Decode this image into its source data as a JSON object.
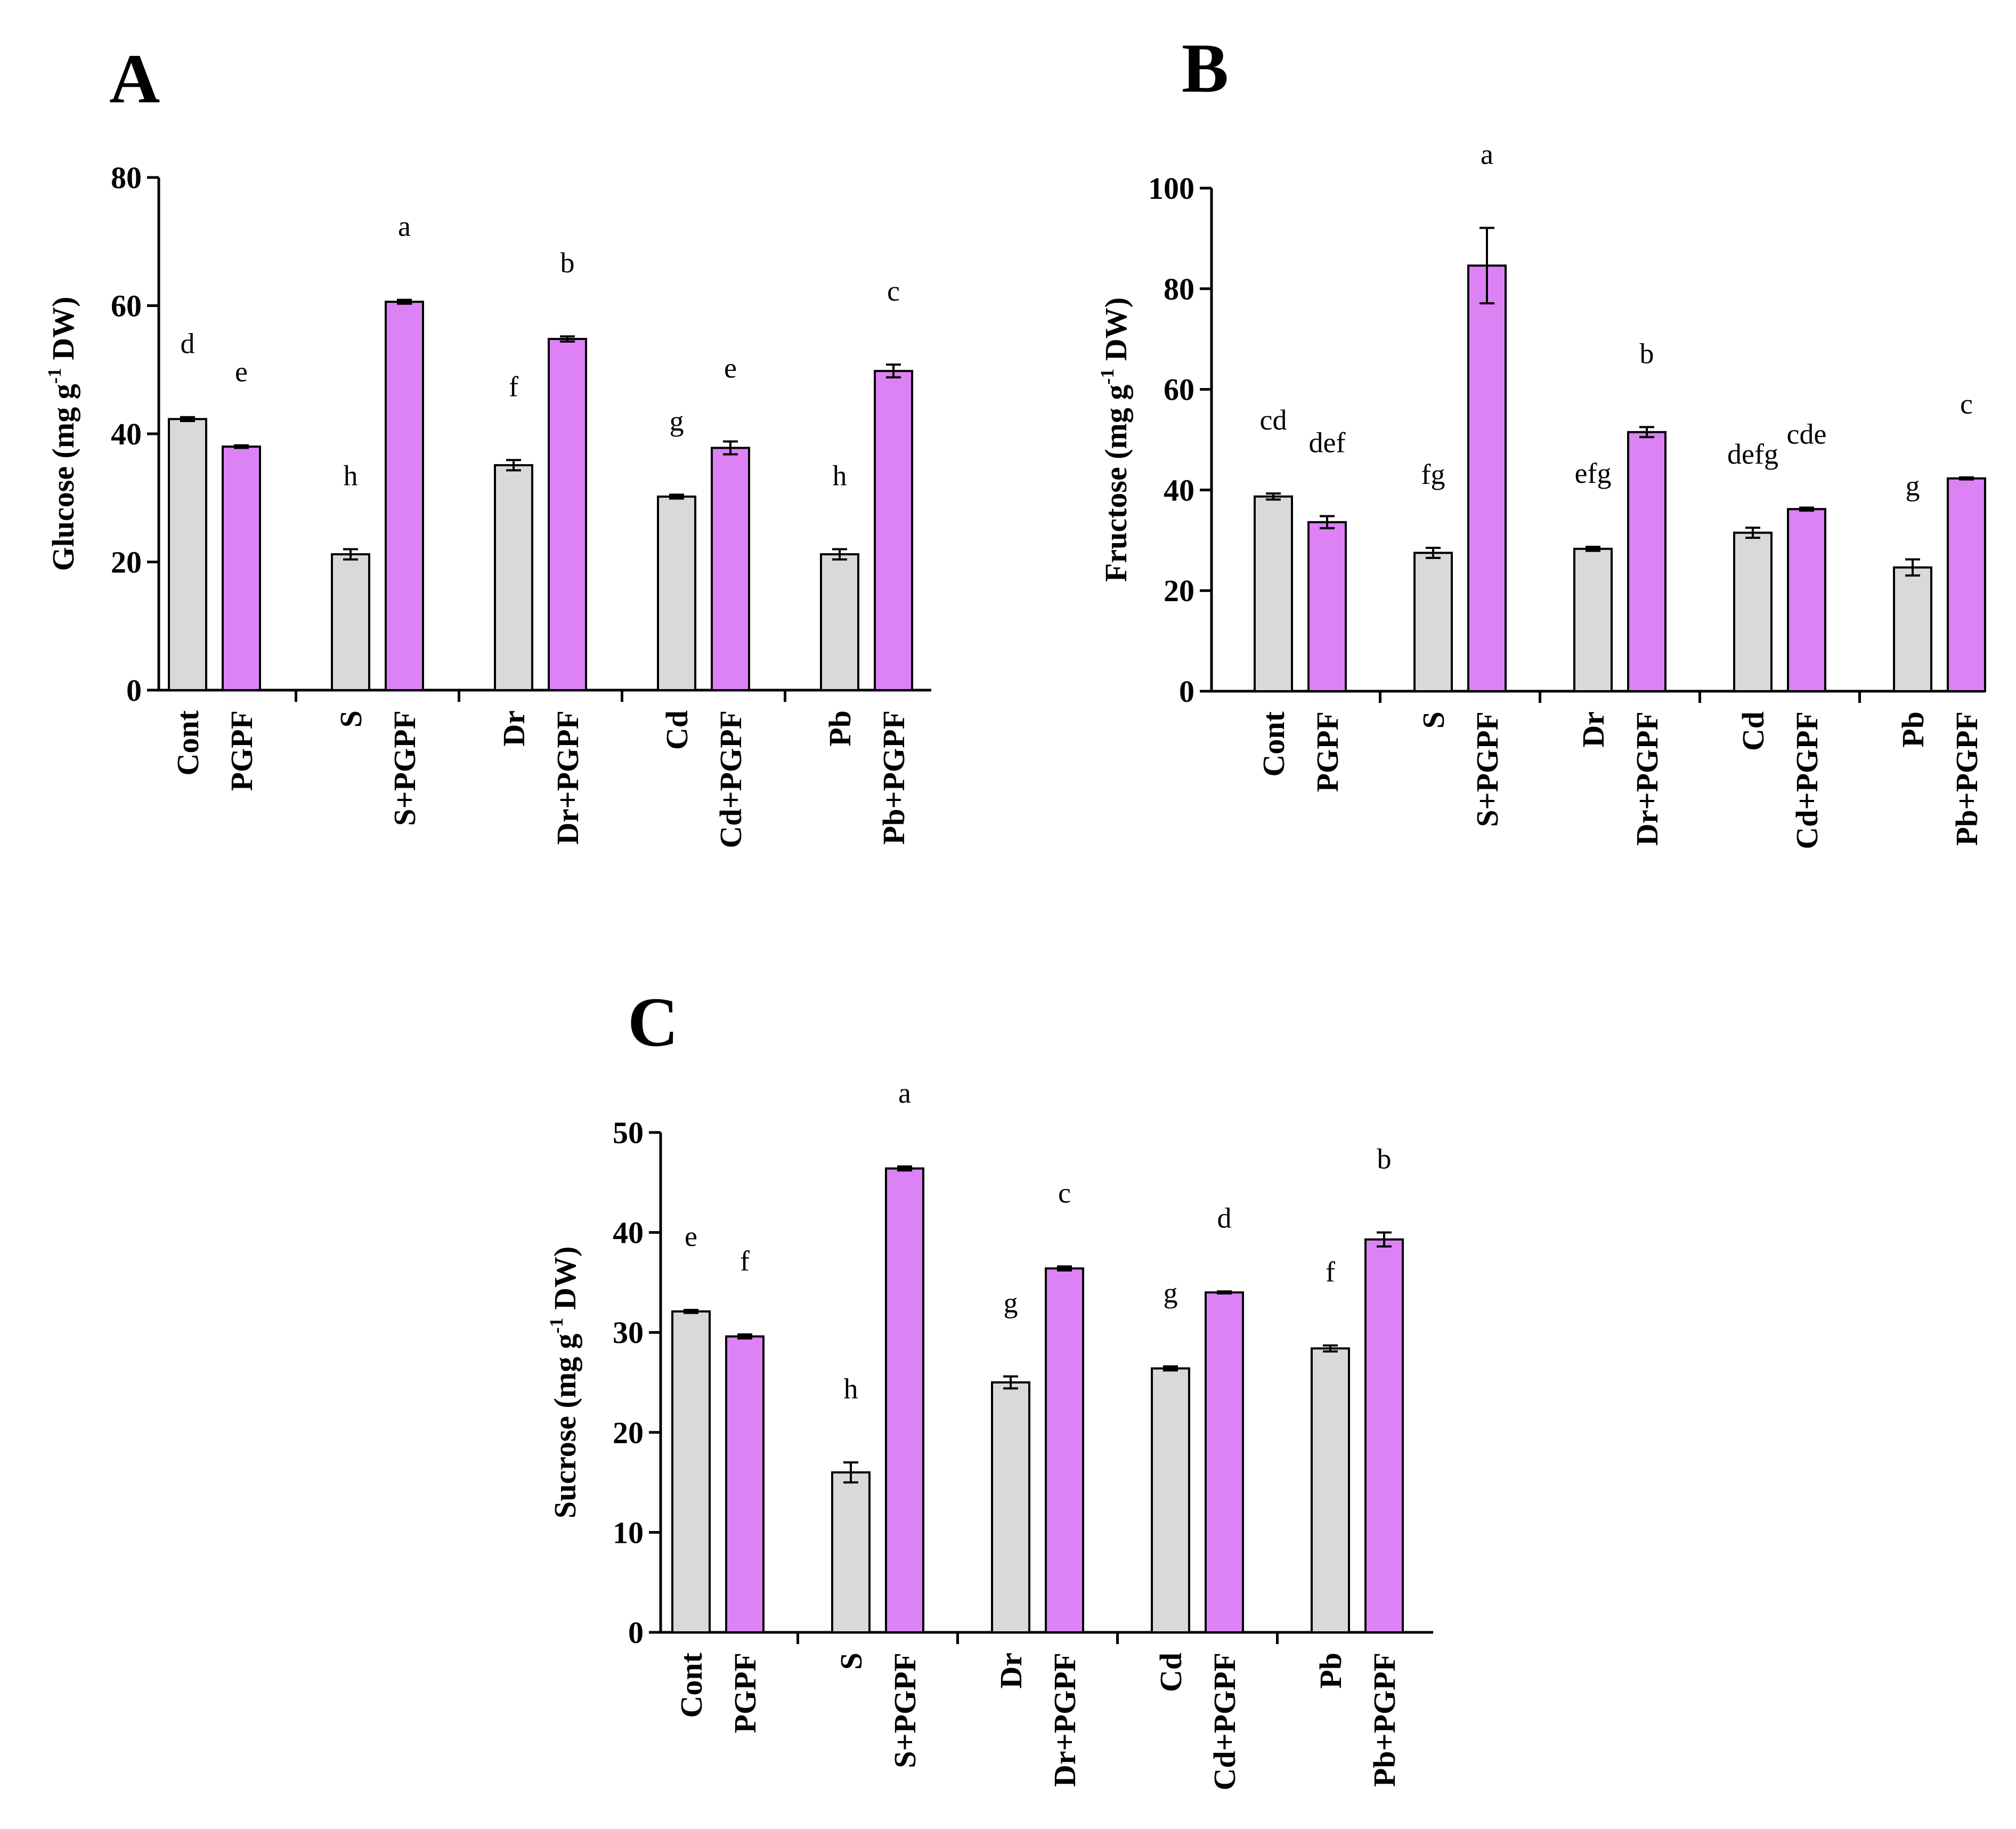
{
  "figure": {
    "colors": {
      "control": "#d9d9d9",
      "pgpf": "#dc82f5",
      "stroke": "#000000"
    }
  },
  "chart_data": [
    {
      "panel": "A",
      "type": "bar",
      "ylabel_main": "Glucose (mg g",
      "ylabel_sup": "-1",
      "ylabel_tail": " DW)",
      "ylim": [
        0,
        80
      ],
      "yticks": [
        "0",
        "20",
        "40",
        "60",
        "80"
      ],
      "categories": [
        "Cont",
        "PGPF",
        "S",
        "S+PGPF",
        "Dr",
        "Dr+PGPF",
        "Cd",
        "Cd+PGPF",
        "Pb",
        "Pb+PGPF"
      ],
      "groups": [
        "Cont",
        "S",
        "Dr",
        "Cd",
        "Pb"
      ],
      "values": [
        42.3,
        38.0,
        21.2,
        60.6,
        35.1,
        54.8,
        30.2,
        37.8,
        21.2,
        49.8
      ],
      "errors": [
        0.3,
        0.2,
        0.8,
        0.3,
        0.8,
        0.4,
        0.3,
        1.0,
        0.8,
        1.0
      ],
      "letters": [
        "d",
        "e",
        "h",
        "a",
        "f",
        "b",
        "g",
        "e",
        "h",
        "c"
      ]
    },
    {
      "panel": "B",
      "type": "bar",
      "ylabel_main": "Fructose (mg g",
      "ylabel_sup": "-1",
      "ylabel_tail": " DW)",
      "ylim": [
        0,
        100
      ],
      "yticks": [
        "0",
        "20",
        "40",
        "60",
        "80",
        "100"
      ],
      "categories": [
        "Cont",
        "PGPF",
        "S",
        "S+PGPF",
        "Dr",
        "Dr+PGPF",
        "Cd",
        "Cd+PGPF",
        "Pb",
        "Pb+PGPF"
      ],
      "groups": [
        "Cont",
        "S",
        "Dr",
        "Cd",
        "Pb"
      ],
      "values": [
        38.7,
        33.6,
        27.5,
        84.6,
        28.3,
        51.5,
        31.5,
        36.2,
        24.6,
        42.3
      ],
      "errors": [
        0.6,
        1.2,
        1.0,
        7.5,
        0.4,
        1.0,
        1.0,
        0.3,
        1.6,
        0.2
      ],
      "letters": [
        "cd",
        "def",
        "fg",
        "a",
        "efg",
        "b",
        "defg",
        "cde",
        "g",
        "c"
      ]
    },
    {
      "panel": "C",
      "type": "bar",
      "ylabel_main": "Sucrose (mg g",
      "ylabel_sup": "-1",
      "ylabel_tail": " DW)",
      "ylim": [
        0,
        50
      ],
      "yticks": [
        "0",
        "10",
        "20",
        "30",
        "40",
        "50"
      ],
      "categories": [
        "Cont",
        "PGPF",
        "S",
        "S+PGPF",
        "Dr",
        "Dr+PGPF",
        "Cd",
        "Cd+PGPF",
        "Pb",
        "Pb+PGPF"
      ],
      "groups": [
        "Cont",
        "S",
        "Dr",
        "Cd",
        "Pb"
      ],
      "values": [
        32.1,
        29.6,
        16.0,
        46.4,
        25.0,
        36.4,
        26.4,
        34.0,
        28.4,
        39.3
      ],
      "errors": [
        0.15,
        0.2,
        1.0,
        0.2,
        0.6,
        0.2,
        0.2,
        0.1,
        0.3,
        0.7
      ],
      "letters": [
        "e",
        "f",
        "h",
        "a",
        "g",
        "c",
        "g",
        "d",
        "f",
        "b"
      ]
    }
  ]
}
